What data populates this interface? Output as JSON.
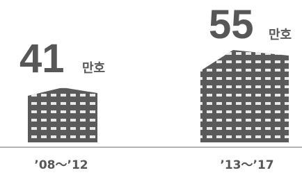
{
  "items": [
    {
      "value": "41",
      "unit": "만호",
      "period": "’08～’12"
    },
    {
      "value": "55",
      "unit": "만호",
      "period": "’13～’17"
    }
  ]
}
